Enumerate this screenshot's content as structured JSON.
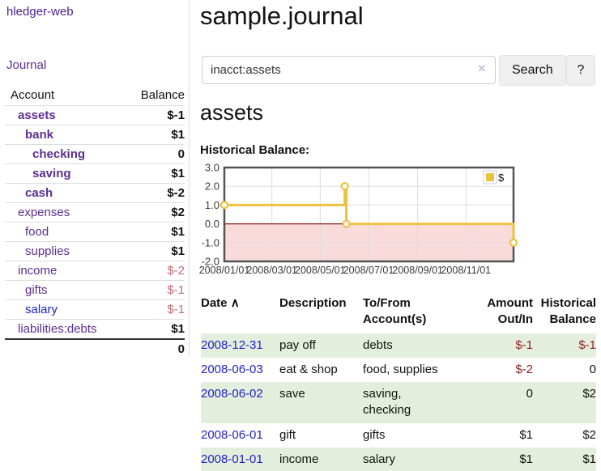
{
  "brand": "hledger-web",
  "sidebar": {
    "journal_link": "Journal",
    "accounts_table": {
      "headers": {
        "account": "Account",
        "balance": "Balance"
      },
      "rows": [
        {
          "name": "assets",
          "balance": "$-1",
          "depth": 1,
          "matched": true,
          "negative": true
        },
        {
          "name": "bank",
          "balance": "$1",
          "depth": 2,
          "matched": true,
          "negative": false
        },
        {
          "name": "checking",
          "balance": "0",
          "depth": 3,
          "matched": true,
          "negative": false
        },
        {
          "name": "saving",
          "balance": "$1",
          "depth": 3,
          "matched": true,
          "negative": false
        },
        {
          "name": "cash",
          "balance": "$-2",
          "depth": 2,
          "matched": true,
          "negative": true
        },
        {
          "name": "expenses",
          "balance": "$2",
          "depth": 1,
          "matched": false,
          "negative": false
        },
        {
          "name": "food",
          "balance": "$1",
          "depth": 2,
          "matched": false,
          "negative": false
        },
        {
          "name": "supplies",
          "balance": "$1",
          "depth": 2,
          "matched": false,
          "negative": false
        },
        {
          "name": "income",
          "balance": "$-2",
          "depth": 1,
          "matched": false,
          "negative": true
        },
        {
          "name": "gifts",
          "balance": "$-1",
          "depth": 2,
          "matched": false,
          "negative": true
        },
        {
          "name": "salary",
          "balance": "$-1",
          "depth": 2,
          "matched": false,
          "negative": true
        },
        {
          "name": "liabilities:debts",
          "balance": "$1",
          "depth": 1,
          "matched": false,
          "negative": false
        }
      ],
      "total": "0"
    }
  },
  "header": {
    "title": "sample.journal"
  },
  "search": {
    "value": "inacct:assets",
    "clear_icon": "×",
    "search_label": "Search",
    "help_label": "?"
  },
  "account_page": {
    "heading": "assets",
    "chart_label": "Historical Balance:"
  },
  "chart_data": {
    "type": "line",
    "title": "Historical Balance:",
    "step": true,
    "x_range": [
      "2008-01-01",
      "2008-12-31"
    ],
    "ylim": [
      -2,
      3
    ],
    "yticks": [
      3,
      2,
      1,
      0,
      -1,
      -2
    ],
    "xticks": [
      "2008-01-01",
      "2008-03-01",
      "2008-05-01",
      "2008-07-01",
      "2008-09-01",
      "2008-11-01"
    ],
    "series": [
      {
        "name": "$",
        "color": "#edc240",
        "points": [
          [
            "2008-01-01",
            1
          ],
          [
            "2008-06-01",
            2
          ],
          [
            "2008-06-03",
            0
          ],
          [
            "2008-12-31",
            -1
          ]
        ]
      }
    ],
    "legend_position": "top-right",
    "grid": true,
    "grid_color": "#dddddd",
    "border_color": "#545454",
    "zero_line_color": "#8b1a1a",
    "negative_region_color": "#f9dbdb"
  },
  "register_table": {
    "headers": {
      "date": "Date",
      "sort_indicator": "∧",
      "description": "Description",
      "accounts": [
        "To/From",
        "Account(s)"
      ],
      "amount": [
        "Amount",
        "Out/In"
      ],
      "balance": [
        "Historical",
        "Balance"
      ]
    },
    "rows": [
      {
        "date": "2008-12-31",
        "description": "pay off",
        "accounts": [
          "debts"
        ],
        "amount": "$-1",
        "balance": "$-1",
        "amount_negative": true,
        "balance_negative": true
      },
      {
        "date": "2008-06-03",
        "description": "eat & shop",
        "accounts": [
          "food, supplies"
        ],
        "amount": "$-2",
        "balance": "0",
        "amount_negative": true,
        "balance_negative": false
      },
      {
        "date": "2008-06-02",
        "description": "save",
        "accounts": [
          "saving,",
          "checking"
        ],
        "amount": "0",
        "balance": "$2",
        "amount_negative": false,
        "balance_negative": false
      },
      {
        "date": "2008-06-01",
        "description": "gift",
        "accounts": [
          "gifts"
        ],
        "amount": "$1",
        "balance": "$2",
        "amount_negative": false,
        "balance_negative": false
      },
      {
        "date": "2008-01-01",
        "description": "income",
        "accounts": [
          "salary"
        ],
        "amount": "$1",
        "balance": "$1",
        "amount_negative": false,
        "balance_negative": false
      }
    ]
  },
  "colors": {
    "purple_link": "#5c2d91",
    "blue_link": "#2222cc",
    "negative_bold": "#8f1f1f",
    "negative_muted": "#c26d77",
    "row_stripe_green": "#e3efdc",
    "series_yellow": "#edc240"
  }
}
